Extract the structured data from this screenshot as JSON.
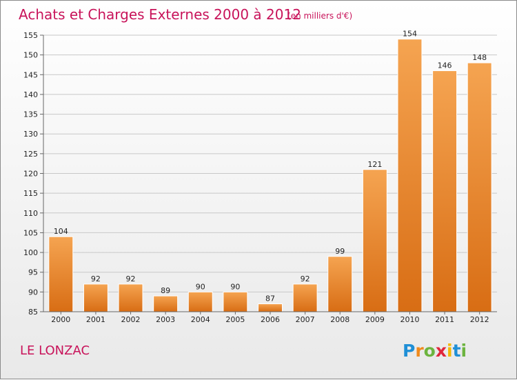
{
  "title": "Achats et Charges Externes 2000 à 2012",
  "unit": "(en milliers d'€)",
  "town": "LE LONZAC",
  "logo": {
    "letters": [
      "P",
      "r",
      "o",
      "x",
      "i",
      "t",
      "i"
    ],
    "colors": [
      "#1f8fd6",
      "#f08a1c",
      "#6cb43f",
      "#e0263b",
      "#f3b800",
      "#1f8fd6",
      "#6cb43f"
    ]
  },
  "colors": {
    "bar_light": "#f5a451",
    "bar_dark": "#d86d14",
    "accent": "#c8135a",
    "grid": "#c8c8c8"
  },
  "chart_data": {
    "type": "bar",
    "categories": [
      "2000",
      "2001",
      "2002",
      "2003",
      "2004",
      "2005",
      "2006",
      "2007",
      "2008",
      "2009",
      "2010",
      "2011",
      "2012"
    ],
    "values": [
      104,
      92,
      92,
      89,
      90,
      90,
      87,
      92,
      99,
      121,
      154,
      146,
      148
    ],
    "ylim": [
      85,
      155
    ],
    "yticks": [
      85,
      90,
      95,
      100,
      105,
      110,
      115,
      120,
      125,
      130,
      135,
      140,
      145,
      150,
      155
    ],
    "grid": true,
    "legend": "none"
  }
}
